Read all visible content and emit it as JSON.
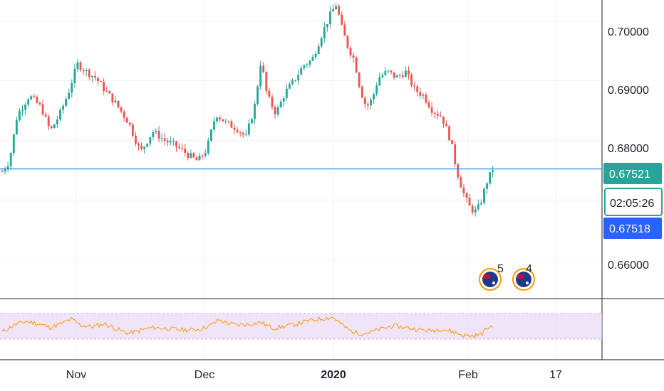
{
  "chart_data": [
    {
      "type": "candlestick",
      "name": "",
      "x_ticks": [
        "Nov",
        "Dec",
        "2020",
        "Feb",
        "17"
      ],
      "y_ticks": [
        "0.70000",
        "0.69000",
        "0.68000",
        "0.66000"
      ],
      "ylim": [
        0.6535,
        0.7035
      ],
      "last_price": 0.67521,
      "last_price_label": "0.67521",
      "countdown": "02:05:26",
      "bid_price": 0.67518,
      "bid_price_label": "0.67518",
      "up_color": "#26a69a",
      "down_color": "#ef5350",
      "price_line_color": "#2196f3",
      "close_path": [
        [
          0,
          0.6748
        ],
        [
          0.012,
          0.6765
        ],
        [
          0.025,
          0.6842
        ],
        [
          0.045,
          0.6875
        ],
        [
          0.065,
          0.6855
        ],
        [
          0.08,
          0.6815
        ],
        [
          0.095,
          0.6842
        ],
        [
          0.11,
          0.688
        ],
        [
          0.125,
          0.6928
        ],
        [
          0.14,
          0.6915
        ],
        [
          0.155,
          0.6905
        ],
        [
          0.17,
          0.6885
        ],
        [
          0.19,
          0.686
        ],
        [
          0.21,
          0.683
        ],
        [
          0.23,
          0.678
        ],
        [
          0.25,
          0.6815
        ],
        [
          0.27,
          0.68
        ],
        [
          0.29,
          0.679
        ],
        [
          0.31,
          0.6775
        ],
        [
          0.325,
          0.6765
        ],
        [
          0.34,
          0.6785
        ],
        [
          0.355,
          0.6845
        ],
        [
          0.37,
          0.683
        ],
        [
          0.39,
          0.682
        ],
        [
          0.405,
          0.6805
        ],
        [
          0.42,
          0.686
        ],
        [
          0.43,
          0.6935
        ],
        [
          0.44,
          0.6875
        ],
        [
          0.455,
          0.6845
        ],
        [
          0.47,
          0.688
        ],
        [
          0.485,
          0.69
        ],
        [
          0.5,
          0.6925
        ],
        [
          0.515,
          0.6935
        ],
        [
          0.53,
          0.6975
        ],
        [
          0.545,
          0.701
        ],
        [
          0.555,
          0.7028
        ],
        [
          0.565,
          0.6985
        ],
        [
          0.575,
          0.6955
        ],
        [
          0.585,
          0.6935
        ],
        [
          0.595,
          0.6885
        ],
        [
          0.605,
          0.6855
        ],
        [
          0.615,
          0.687
        ],
        [
          0.625,
          0.6905
        ],
        [
          0.64,
          0.6915
        ],
        [
          0.655,
          0.6905
        ],
        [
          0.67,
          0.6915
        ],
        [
          0.685,
          0.6885
        ],
        [
          0.7,
          0.6875
        ],
        [
          0.715,
          0.685
        ],
        [
          0.73,
          0.684
        ],
        [
          0.745,
          0.68
        ],
        [
          0.755,
          0.675
        ],
        [
          0.765,
          0.6715
        ],
        [
          0.775,
          0.669
        ],
        [
          0.785,
          0.668
        ],
        [
          0.793,
          0.669
        ],
        [
          0.805,
          0.673
        ],
        [
          0.815,
          0.6752
        ]
      ],
      "events": [
        {
          "icon": "flag-au-us-icon",
          "count": "5"
        },
        {
          "icon": "flag-au-us-icon",
          "count": "4"
        }
      ]
    },
    {
      "type": "line",
      "name": "",
      "color": "#ff9800",
      "band_color": "#e9d9f7",
      "path": [
        [
          0,
          0.28
        ],
        [
          0.02,
          0.55
        ],
        [
          0.04,
          0.7
        ],
        [
          0.06,
          0.6
        ],
        [
          0.08,
          0.45
        ],
        [
          0.1,
          0.62
        ],
        [
          0.115,
          0.78
        ],
        [
          0.13,
          0.55
        ],
        [
          0.15,
          0.48
        ],
        [
          0.17,
          0.6
        ],
        [
          0.19,
          0.4
        ],
        [
          0.21,
          0.22
        ],
        [
          0.23,
          0.35
        ],
        [
          0.25,
          0.45
        ],
        [
          0.27,
          0.42
        ],
        [
          0.29,
          0.38
        ],
        [
          0.31,
          0.35
        ],
        [
          0.33,
          0.4
        ],
        [
          0.345,
          0.52
        ],
        [
          0.36,
          0.75
        ],
        [
          0.375,
          0.62
        ],
        [
          0.39,
          0.55
        ],
        [
          0.41,
          0.58
        ],
        [
          0.43,
          0.65
        ],
        [
          0.45,
          0.42
        ],
        [
          0.47,
          0.5
        ],
        [
          0.49,
          0.6
        ],
        [
          0.51,
          0.72
        ],
        [
          0.53,
          0.8
        ],
        [
          0.55,
          0.85
        ],
        [
          0.565,
          0.55
        ],
        [
          0.58,
          0.3
        ],
        [
          0.595,
          0.22
        ],
        [
          0.61,
          0.25
        ],
        [
          0.63,
          0.4
        ],
        [
          0.65,
          0.52
        ],
        [
          0.67,
          0.45
        ],
        [
          0.69,
          0.38
        ],
        [
          0.71,
          0.32
        ],
        [
          0.73,
          0.4
        ],
        [
          0.75,
          0.28
        ],
        [
          0.765,
          0.15
        ],
        [
          0.78,
          0.12
        ],
        [
          0.795,
          0.18
        ],
        [
          0.805,
          0.42
        ],
        [
          0.815,
          0.52
        ]
      ],
      "x_ticks": [],
      "y_ticks": []
    }
  ]
}
